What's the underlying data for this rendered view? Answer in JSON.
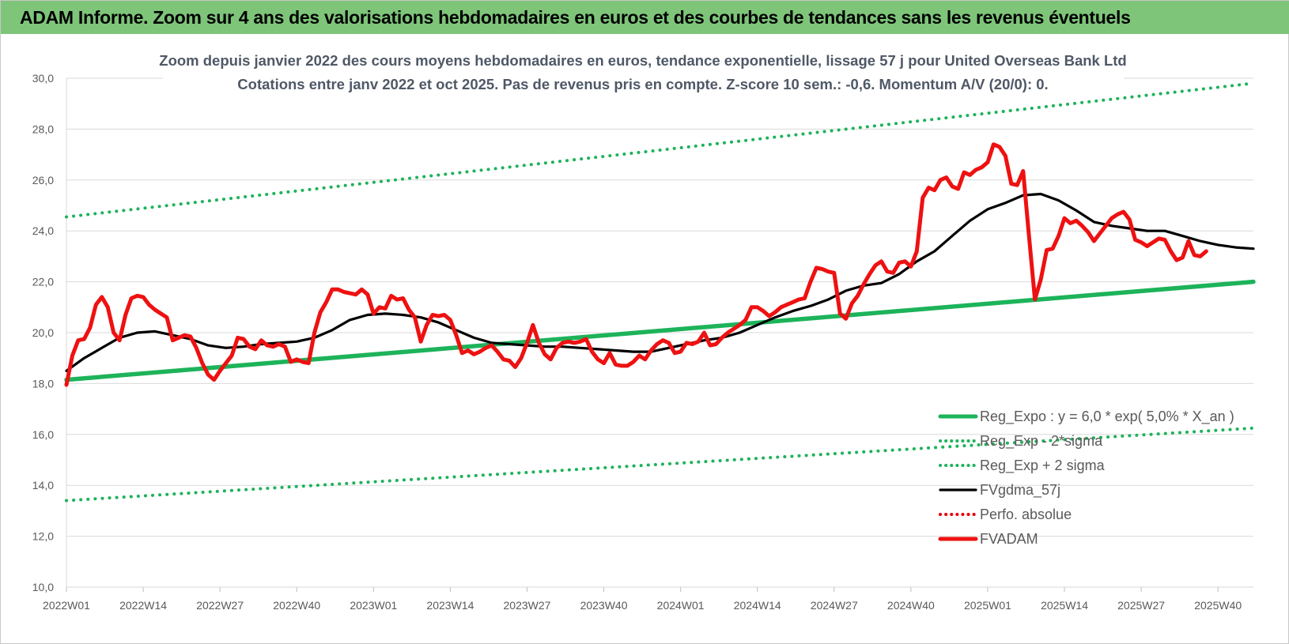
{
  "banner": {
    "title": "ADAM Informe. Zoom sur 4 ans des valorisations hebdomadaires en euros et des courbes de tendances sans les revenus éventuels"
  },
  "colors": {
    "banner": "#7ec57a",
    "reg_expo": "#1db35a",
    "fvgdma": "#000000",
    "perfo": "#e8000b",
    "fvadam": "#ee1111",
    "grid": "#d9d9d9"
  },
  "chart_data": {
    "type": "line",
    "title": "Zoom depuis janvier 2022 des cours moyens hebdomadaires en euros, tendance exponentielle, lissage 57 j pour United Overseas Bank Ltd",
    "subtitle": "Cotations entre janv 2022 et oct 2025. Pas de revenus pris en compte. Z-score 10 sem.: -0,6. Momentum A/V (20/0): 0.",
    "xlabel": "",
    "ylabel": "",
    "ylim": [
      10,
      30
    ],
    "y_ticks": [
      "10,0",
      "12,0",
      "14,0",
      "16,0",
      "18,0",
      "20,0",
      "22,0",
      "24,0",
      "26,0",
      "28,0",
      "30,0"
    ],
    "x_tick_labels": [
      "2022W01",
      "2022W14",
      "2022W27",
      "2022W40",
      "2023W01",
      "2023W14",
      "2023W27",
      "2023W40",
      "2024W01",
      "2024W14",
      "2024W27",
      "2024W40",
      "2025W01",
      "2025W14",
      "2025W27",
      "2025W40"
    ],
    "x_tick_weeks": [
      0,
      13,
      26,
      39,
      52,
      65,
      78,
      91,
      104,
      117,
      130,
      143,
      156,
      169,
      182,
      195
    ],
    "x_range_weeks": [
      0,
      201
    ],
    "grid": "horizontal",
    "legend_position": "bottom-right",
    "series": [
      {
        "name": "Reg_Expo : y = 6,0 * exp( 5,0% * X_an )",
        "style": "solid",
        "color": "#1db35a",
        "points": [
          [
            0,
            18.15
          ],
          [
            201,
            22.0
          ]
        ]
      },
      {
        "name": "Reg_Exp - 2*sigma",
        "style": "dotted",
        "color": "#1db35a",
        "points": [
          [
            0,
            13.4
          ],
          [
            201,
            16.25
          ]
        ]
      },
      {
        "name": "Reg_Exp + 2 sigma",
        "style": "dotted",
        "color": "#1db35a",
        "points": [
          [
            0,
            24.55
          ],
          [
            201,
            29.8
          ]
        ]
      },
      {
        "name": "FVgdma_57j",
        "style": "solid",
        "color": "#000000",
        "points": [
          [
            0,
            18.5
          ],
          [
            3,
            19.0
          ],
          [
            6,
            19.4
          ],
          [
            9,
            19.8
          ],
          [
            12,
            20.0
          ],
          [
            15,
            20.05
          ],
          [
            18,
            19.9
          ],
          [
            21,
            19.75
          ],
          [
            24,
            19.5
          ],
          [
            27,
            19.4
          ],
          [
            30,
            19.45
          ],
          [
            33,
            19.55
          ],
          [
            36,
            19.6
          ],
          [
            39,
            19.65
          ],
          [
            42,
            19.8
          ],
          [
            45,
            20.1
          ],
          [
            48,
            20.5
          ],
          [
            51,
            20.7
          ],
          [
            54,
            20.75
          ],
          [
            57,
            20.7
          ],
          [
            60,
            20.6
          ],
          [
            63,
            20.4
          ],
          [
            66,
            20.1
          ],
          [
            69,
            19.8
          ],
          [
            72,
            19.6
          ],
          [
            75,
            19.55
          ],
          [
            78,
            19.5
          ],
          [
            81,
            19.45
          ],
          [
            84,
            19.45
          ],
          [
            87,
            19.4
          ],
          [
            90,
            19.35
          ],
          [
            93,
            19.3
          ],
          [
            96,
            19.25
          ],
          [
            99,
            19.25
          ],
          [
            102,
            19.4
          ],
          [
            105,
            19.55
          ],
          [
            108,
            19.7
          ],
          [
            111,
            19.8
          ],
          [
            114,
            20.0
          ],
          [
            117,
            20.3
          ],
          [
            120,
            20.6
          ],
          [
            123,
            20.85
          ],
          [
            126,
            21.05
          ],
          [
            129,
            21.3
          ],
          [
            132,
            21.65
          ],
          [
            135,
            21.85
          ],
          [
            138,
            21.95
          ],
          [
            141,
            22.3
          ],
          [
            144,
            22.8
          ],
          [
            147,
            23.2
          ],
          [
            150,
            23.8
          ],
          [
            153,
            24.4
          ],
          [
            156,
            24.85
          ],
          [
            159,
            25.1
          ],
          [
            162,
            25.4
          ],
          [
            165,
            25.45
          ],
          [
            168,
            25.2
          ],
          [
            171,
            24.8
          ],
          [
            174,
            24.35
          ],
          [
            177,
            24.2
          ],
          [
            180,
            24.1
          ],
          [
            183,
            24.0
          ],
          [
            186,
            24.0
          ],
          [
            189,
            23.8
          ],
          [
            192,
            23.6
          ],
          [
            195,
            23.45
          ],
          [
            198,
            23.35
          ],
          [
            201,
            23.3
          ]
        ]
      },
      {
        "name": "Perfo. absolue",
        "style": "dotted",
        "color": "#e8000b",
        "points": []
      },
      {
        "name": "FVADAM",
        "style": "solid",
        "color": "#ee1111",
        "points": [
          [
            0,
            17.95
          ],
          [
            1,
            19.1
          ],
          [
            2,
            19.7
          ],
          [
            3,
            19.75
          ],
          [
            4,
            20.2
          ],
          [
            5,
            21.1
          ],
          [
            6,
            21.4
          ],
          [
            7,
            21.0
          ],
          [
            8,
            20.0
          ],
          [
            9,
            19.7
          ],
          [
            10,
            20.7
          ],
          [
            11,
            21.35
          ],
          [
            12,
            21.45
          ],
          [
            13,
            21.4
          ],
          [
            14,
            21.1
          ],
          [
            15,
            20.9
          ],
          [
            16,
            20.75
          ],
          [
            17,
            20.6
          ],
          [
            18,
            19.7
          ],
          [
            19,
            19.8
          ],
          [
            20,
            19.9
          ],
          [
            21,
            19.85
          ],
          [
            22,
            19.4
          ],
          [
            23,
            18.8
          ],
          [
            24,
            18.35
          ],
          [
            25,
            18.15
          ],
          [
            26,
            18.5
          ],
          [
            27,
            18.8
          ],
          [
            28,
            19.1
          ],
          [
            29,
            19.8
          ],
          [
            30,
            19.75
          ],
          [
            31,
            19.45
          ],
          [
            32,
            19.35
          ],
          [
            33,
            19.7
          ],
          [
            34,
            19.5
          ],
          [
            35,
            19.45
          ],
          [
            36,
            19.55
          ],
          [
            37,
            19.45
          ],
          [
            38,
            18.85
          ],
          [
            39,
            18.95
          ],
          [
            40,
            18.85
          ],
          [
            41,
            18.8
          ],
          [
            42,
            20.0
          ],
          [
            43,
            20.8
          ],
          [
            44,
            21.2
          ],
          [
            45,
            21.7
          ],
          [
            46,
            21.7
          ],
          [
            47,
            21.6
          ],
          [
            48,
            21.55
          ],
          [
            49,
            21.5
          ],
          [
            50,
            21.7
          ],
          [
            51,
            21.5
          ],
          [
            52,
            20.75
          ],
          [
            53,
            21.0
          ],
          [
            54,
            20.95
          ],
          [
            55,
            21.45
          ],
          [
            56,
            21.3
          ],
          [
            57,
            21.35
          ],
          [
            58,
            20.9
          ],
          [
            59,
            20.6
          ],
          [
            60,
            19.65
          ],
          [
            61,
            20.3
          ],
          [
            62,
            20.7
          ],
          [
            63,
            20.65
          ],
          [
            64,
            20.7
          ],
          [
            65,
            20.5
          ],
          [
            66,
            19.9
          ],
          [
            67,
            19.2
          ],
          [
            68,
            19.3
          ],
          [
            69,
            19.15
          ],
          [
            70,
            19.25
          ],
          [
            71,
            19.4
          ],
          [
            72,
            19.5
          ],
          [
            73,
            19.25
          ],
          [
            74,
            18.95
          ],
          [
            75,
            18.9
          ],
          [
            76,
            18.65
          ],
          [
            77,
            19.0
          ],
          [
            78,
            19.6
          ],
          [
            79,
            20.3
          ],
          [
            80,
            19.6
          ],
          [
            81,
            19.15
          ],
          [
            82,
            18.95
          ],
          [
            83,
            19.4
          ],
          [
            84,
            19.6
          ],
          [
            85,
            19.65
          ],
          [
            86,
            19.6
          ],
          [
            87,
            19.65
          ],
          [
            88,
            19.75
          ],
          [
            89,
            19.25
          ],
          [
            90,
            18.95
          ],
          [
            91,
            18.8
          ],
          [
            92,
            19.2
          ],
          [
            93,
            18.75
          ],
          [
            94,
            18.7
          ],
          [
            95,
            18.7
          ],
          [
            96,
            18.85
          ],
          [
            97,
            19.1
          ],
          [
            98,
            18.95
          ],
          [
            99,
            19.3
          ],
          [
            100,
            19.55
          ],
          [
            101,
            19.7
          ],
          [
            102,
            19.6
          ],
          [
            103,
            19.2
          ],
          [
            104,
            19.25
          ],
          [
            105,
            19.6
          ],
          [
            106,
            19.55
          ],
          [
            107,
            19.65
          ],
          [
            108,
            20.0
          ],
          [
            109,
            19.5
          ],
          [
            110,
            19.55
          ],
          [
            111,
            19.8
          ],
          [
            112,
            20.0
          ],
          [
            113,
            20.15
          ],
          [
            114,
            20.3
          ],
          [
            115,
            20.5
          ],
          [
            116,
            21.0
          ],
          [
            117,
            21.0
          ],
          [
            118,
            20.85
          ],
          [
            119,
            20.65
          ],
          [
            120,
            20.8
          ],
          [
            121,
            21.0
          ],
          [
            122,
            21.1
          ],
          [
            123,
            21.2
          ],
          [
            124,
            21.3
          ],
          [
            125,
            21.35
          ],
          [
            126,
            22.0
          ],
          [
            127,
            22.55
          ],
          [
            128,
            22.5
          ],
          [
            129,
            22.4
          ],
          [
            130,
            22.35
          ],
          [
            131,
            20.75
          ],
          [
            132,
            20.55
          ],
          [
            133,
            21.15
          ],
          [
            134,
            21.45
          ],
          [
            135,
            21.9
          ],
          [
            136,
            22.3
          ],
          [
            137,
            22.65
          ],
          [
            138,
            22.8
          ],
          [
            139,
            22.4
          ],
          [
            140,
            22.35
          ],
          [
            141,
            22.75
          ],
          [
            142,
            22.8
          ],
          [
            143,
            22.6
          ],
          [
            144,
            23.2
          ],
          [
            145,
            25.3
          ],
          [
            146,
            25.7
          ],
          [
            147,
            25.6
          ],
          [
            148,
            26.0
          ],
          [
            149,
            26.1
          ],
          [
            150,
            25.75
          ],
          [
            151,
            25.65
          ],
          [
            152,
            26.3
          ],
          [
            153,
            26.2
          ],
          [
            154,
            26.4
          ],
          [
            155,
            26.5
          ],
          [
            156,
            26.7
          ],
          [
            157,
            27.4
          ],
          [
            158,
            27.3
          ],
          [
            159,
            26.95
          ],
          [
            160,
            25.85
          ],
          [
            161,
            25.8
          ],
          [
            162,
            26.35
          ],
          [
            163,
            23.8
          ],
          [
            164,
            21.3
          ],
          [
            165,
            22.1
          ],
          [
            166,
            23.25
          ],
          [
            167,
            23.3
          ],
          [
            168,
            23.8
          ],
          [
            169,
            24.5
          ],
          [
            170,
            24.3
          ],
          [
            171,
            24.4
          ],
          [
            172,
            24.2
          ],
          [
            173,
            23.95
          ],
          [
            174,
            23.6
          ],
          [
            175,
            23.9
          ],
          [
            176,
            24.2
          ],
          [
            177,
            24.5
          ],
          [
            178,
            24.65
          ],
          [
            179,
            24.75
          ],
          [
            180,
            24.45
          ],
          [
            181,
            23.65
          ],
          [
            182,
            23.55
          ],
          [
            183,
            23.4
          ],
          [
            184,
            23.55
          ],
          [
            185,
            23.7
          ],
          [
            186,
            23.65
          ],
          [
            187,
            23.2
          ],
          [
            188,
            22.85
          ],
          [
            189,
            22.95
          ],
          [
            190,
            23.6
          ],
          [
            191,
            23.05
          ],
          [
            192,
            23.0
          ],
          [
            193,
            23.2
          ]
        ]
      }
    ]
  }
}
